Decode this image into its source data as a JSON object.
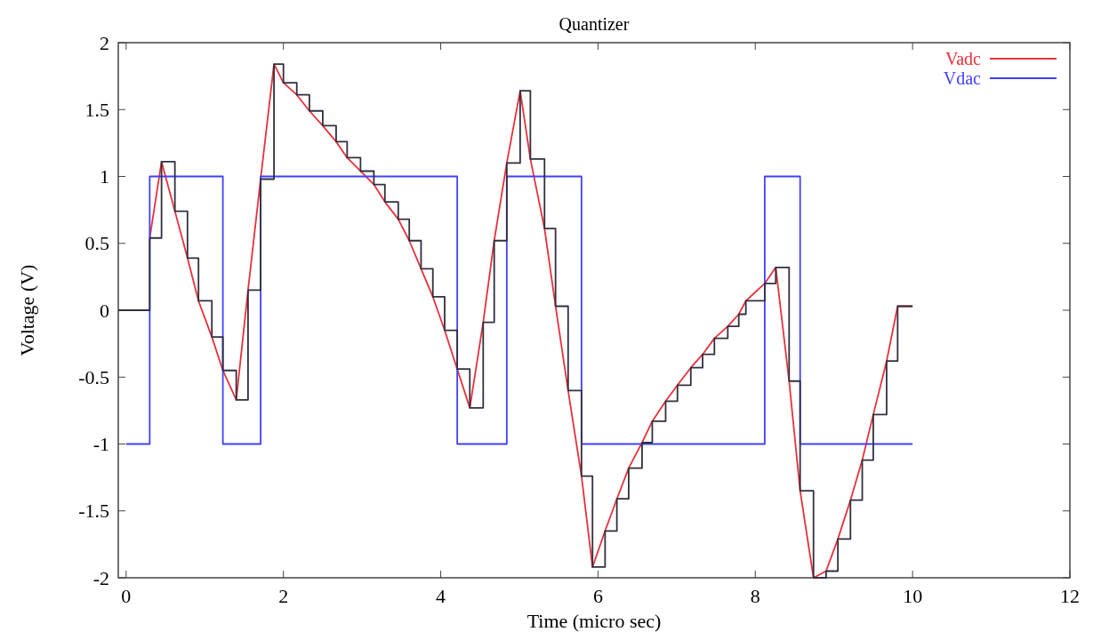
{
  "chart_data": {
    "type": "line",
    "title": "Quantizer",
    "xlabel": "Time  (micro sec)",
    "ylabel": "Voltage  (V)",
    "xlim": [
      -0.1,
      12
    ],
    "xticks": [
      0,
      2,
      4,
      6,
      8,
      10,
      12
    ],
    "ylim": [
      -2,
      2
    ],
    "yticks": [
      -2,
      -1.5,
      -1,
      -0.5,
      0,
      0.5,
      1,
      1.5,
      2
    ],
    "grid": false,
    "legend": "top right",
    "marker": "none",
    "line_style": "solid",
    "series": [
      {
        "name": "Vadc",
        "color": "#e8303a",
        "type": "line",
        "x": [
          0.3,
          0.45,
          0.62,
          0.78,
          0.92,
          1.09,
          1.23,
          1.4,
          1.55,
          1.71,
          1.88,
          2.0,
          2.17,
          2.33,
          2.5,
          2.67,
          2.81,
          2.98,
          3.15,
          3.29,
          3.46,
          3.6,
          3.75,
          3.9,
          4.05,
          4.21,
          4.37,
          4.54,
          4.68,
          4.84,
          5.01,
          5.14,
          5.32,
          5.46,
          5.62,
          5.79,
          5.93,
          6.09,
          6.24,
          6.39,
          6.56,
          6.69,
          6.86,
          7.01,
          7.18,
          7.33,
          7.48,
          7.65,
          7.79,
          7.88,
          8.12,
          8.26,
          8.43,
          8.57,
          8.74,
          8.9,
          9.05,
          9.21,
          9.36,
          9.5,
          9.67,
          9.81,
          10.0
        ],
        "values": [
          0.54,
          1.11,
          0.74,
          0.39,
          0.07,
          -0.2,
          -0.45,
          -0.67,
          0.15,
          0.98,
          1.84,
          1.7,
          1.61,
          1.49,
          1.38,
          1.26,
          1.14,
          1.04,
          0.94,
          0.81,
          0.68,
          0.52,
          0.31,
          0.1,
          -0.15,
          -0.44,
          -0.73,
          -0.09,
          0.52,
          1.1,
          1.64,
          1.13,
          0.61,
          0.03,
          -0.6,
          -1.24,
          -1.92,
          -1.65,
          -1.41,
          -1.18,
          -0.99,
          -0.83,
          -0.68,
          -0.56,
          -0.43,
          -0.33,
          -0.21,
          -0.12,
          -0.03,
          0.07,
          0.2,
          0.32,
          -0.53,
          -1.35,
          -2,
          -1.95,
          -1.71,
          -1.42,
          -1.12,
          -0.78,
          -0.38,
          0.03,
          0.03
        ]
      },
      {
        "name": "Vdac",
        "color": "#4040ff",
        "type": "step",
        "x": [
          0,
          0.3,
          1.23,
          1.71,
          4.21,
          4.84,
          5.79,
          8.12,
          8.57,
          10.0
        ],
        "values": [
          -1,
          1,
          -1,
          1,
          -1,
          1,
          -1,
          1,
          -1,
          -1
        ]
      },
      {
        "color": "#303040",
        "type": "step",
        "x": [
          -0.1,
          0.3,
          0.45,
          0.62,
          0.78,
          0.92,
          1.09,
          1.23,
          1.4,
          1.55,
          1.71,
          1.88,
          2.0,
          2.17,
          2.33,
          2.5,
          2.67,
          2.81,
          2.98,
          3.15,
          3.29,
          3.46,
          3.6,
          3.75,
          3.9,
          4.05,
          4.21,
          4.37,
          4.54,
          4.68,
          4.84,
          5.01,
          5.14,
          5.32,
          5.46,
          5.62,
          5.79,
          5.93,
          6.09,
          6.24,
          6.39,
          6.56,
          6.69,
          6.86,
          7.01,
          7.18,
          7.33,
          7.48,
          7.65,
          7.79,
          7.88,
          8.12,
          8.26,
          8.43,
          8.57,
          8.74,
          8.9,
          9.05,
          9.21,
          9.36,
          9.5,
          9.67,
          9.81,
          10.0
        ],
        "values": [
          0,
          0.54,
          1.11,
          0.74,
          0.39,
          0.07,
          -0.2,
          -0.45,
          -0.67,
          0.15,
          0.98,
          1.84,
          1.7,
          1.61,
          1.49,
          1.38,
          1.26,
          1.14,
          1.04,
          0.94,
          0.81,
          0.68,
          0.52,
          0.31,
          0.1,
          -0.15,
          -0.44,
          -0.73,
          -0.09,
          0.52,
          1.1,
          1.64,
          1.13,
          0.61,
          0.03,
          -0.6,
          -1.24,
          -1.92,
          -1.65,
          -1.41,
          -1.18,
          -0.99,
          -0.83,
          -0.68,
          -0.56,
          -0.43,
          -0.33,
          -0.21,
          -0.12,
          -0.03,
          0.07,
          0.2,
          0.32,
          -0.53,
          -1.35,
          -2,
          -1.95,
          -1.71,
          -1.42,
          -1.12,
          -0.78,
          -0.38,
          0.03,
          0.03
        ]
      }
    ]
  }
}
